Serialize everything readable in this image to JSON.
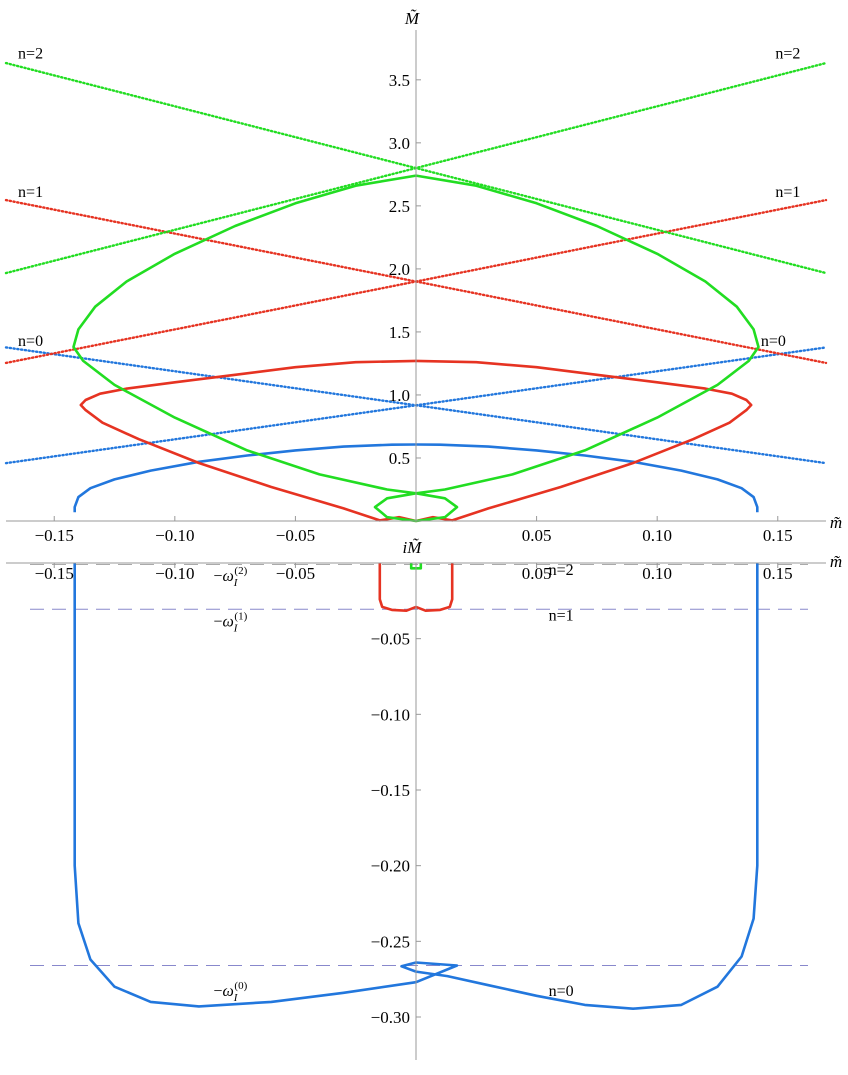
{
  "chart_data": [
    {
      "type": "line",
      "panel": "top",
      "xlabel": "m̃",
      "ylabel": "M̃",
      "xlim": [
        -0.17,
        0.17
      ],
      "ylim": [
        0,
        3.8
      ],
      "xticks": [
        -0.15,
        -0.1,
        -0.05,
        0.05,
        0.1,
        0.15
      ],
      "xtick_labels": [
        "−0.15",
        "−0.10",
        "−0.05",
        "0.05",
        "0.10",
        "0.15"
      ],
      "yticks": [
        0.5,
        1.0,
        1.5,
        2.0,
        2.5,
        3.0,
        3.5
      ],
      "ytick_labels": [
        "0.5",
        "1.0",
        "1.5",
        "2.0",
        "2.5",
        "3.0",
        "3.5"
      ],
      "series_labels": [
        {
          "text": "n=2",
          "x": -0.165,
          "y": 3.67,
          "color": "#22dd22"
        },
        {
          "text": "n=2",
          "x": 0.149,
          "y": 3.67,
          "color": "#22dd22"
        },
        {
          "text": "n=1",
          "x": -0.165,
          "y": 2.57,
          "color": "#e63322"
        },
        {
          "text": "n=1",
          "x": 0.149,
          "y": 2.57,
          "color": "#e63322"
        },
        {
          "text": "n=0",
          "x": -0.165,
          "y": 1.39,
          "color": "#2277dd"
        },
        {
          "text": "n=0",
          "x": 0.143,
          "y": 1.39,
          "color": "#2277dd"
        }
      ],
      "dotted_lines": [
        {
          "n": 0,
          "color": "#2277dd",
          "intercept": 0.918,
          "slope": 2.7
        },
        {
          "n": 1,
          "color": "#e63322",
          "intercept": 1.9,
          "slope": 3.8
        },
        {
          "n": 2,
          "color": "#22dd22",
          "intercept": 2.8,
          "slope": 4.9
        }
      ],
      "solid_curves": [
        {
          "n": 0,
          "color": "#2277dd",
          "points": [
            [
              0.1415,
              0.07
            ],
            [
              0.1415,
              0.11
            ],
            [
              0.14,
              0.19
            ],
            [
              0.135,
              0.26
            ],
            [
              0.125,
              0.33
            ],
            [
              0.11,
              0.4
            ],
            [
              0.09,
              0.47
            ],
            [
              0.07,
              0.52
            ],
            [
              0.05,
              0.56
            ],
            [
              0.03,
              0.59
            ],
            [
              0.01,
              0.605
            ],
            [
              0.0,
              0.607
            ]
          ]
        },
        {
          "n": 1,
          "color": "#e63322",
          "points": [
            [
              0.0,
              0.0
            ],
            [
              0.007,
              0.03
            ],
            [
              0.015,
              0.005
            ],
            [
              0.03,
              0.1
            ],
            [
              0.06,
              0.27
            ],
            [
              0.09,
              0.46
            ],
            [
              0.115,
              0.65
            ],
            [
              0.13,
              0.78
            ],
            [
              0.137,
              0.88
            ],
            [
              0.139,
              0.92
            ],
            [
              0.137,
              0.96
            ],
            [
              0.131,
              1.01
            ],
            [
              0.12,
              1.05
            ],
            [
              0.1,
              1.1
            ],
            [
              0.075,
              1.16
            ],
            [
              0.05,
              1.22
            ],
            [
              0.025,
              1.26
            ],
            [
              0.0,
              1.27
            ]
          ]
        },
        {
          "n": 2,
          "color": "#22dd22",
          "points": [
            [
              0.0,
              0.0
            ],
            [
              0.012,
              0.03
            ],
            [
              0.017,
              0.11
            ],
            [
              0.012,
              0.18
            ],
            [
              0.0,
              0.22
            ],
            [
              0.012,
              0.25
            ],
            [
              0.04,
              0.37
            ],
            [
              0.07,
              0.56
            ],
            [
              0.1,
              0.82
            ],
            [
              0.125,
              1.08
            ],
            [
              0.138,
              1.27
            ],
            [
              0.142,
              1.38
            ],
            [
              0.14,
              1.52
            ],
            [
              0.133,
              1.7
            ],
            [
              0.12,
              1.9
            ],
            [
              0.1,
              2.12
            ],
            [
              0.075,
              2.34
            ],
            [
              0.05,
              2.52
            ],
            [
              0.025,
              2.66
            ],
            [
              0.0,
              2.74
            ]
          ]
        }
      ]
    },
    {
      "type": "line",
      "panel": "bottom",
      "xlabel": "m̃",
      "ylabel": "iM̃",
      "xlim": [
        -0.17,
        0.17
      ],
      "ylim": [
        -0.33,
        0.005
      ],
      "xticks": [
        -0.15,
        -0.1,
        -0.05,
        0.05,
        0.1,
        0.15
      ],
      "xtick_labels": [
        "−0.15",
        "−0.10",
        "−0.05",
        "0.05",
        "0.10",
        "0.15"
      ],
      "yticks": [
        -0.05,
        -0.1,
        -0.15,
        -0.2,
        -0.25,
        -0.3
      ],
      "ytick_labels": [
        "−0.05",
        "−0.10",
        "−0.15",
        "−0.20",
        "−0.25",
        "−0.30"
      ],
      "dashed_levels": [
        {
          "label": "−ω",
          "n": 2,
          "value": -0.001,
          "color": "#aaaaaa"
        },
        {
          "label": "−ω",
          "n": 1,
          "value": -0.0306,
          "color": "#8888cc"
        },
        {
          "label": "−ω",
          "n": 0,
          "value": -0.266,
          "color": "#8888cc"
        }
      ],
      "level_labels": [
        {
          "prefix": "−ω",
          "sub": "I",
          "sup": "(2)",
          "x": -0.084,
          "y": -0.012
        },
        {
          "prefix": "−ω",
          "sub": "I",
          "sup": "(1)",
          "x": -0.084,
          "y": -0.042
        },
        {
          "prefix": "−ω",
          "sub": "I",
          "sup": "(0)",
          "x": -0.084,
          "y": -0.286
        }
      ],
      "series_labels": [
        {
          "text": "n=2",
          "x": 0.055,
          "y": -0.008
        },
        {
          "text": "n=1",
          "x": 0.055,
          "y": -0.038
        },
        {
          "text": "n=0",
          "x": 0.055,
          "y": -0.286
        }
      ],
      "solid_curves": [
        {
          "n": 0,
          "color": "#2277dd",
          "points": [
            [
              0.1415,
              0.0
            ],
            [
              0.1415,
              -0.08
            ],
            [
              0.1415,
              -0.14
            ],
            [
              0.1415,
              -0.2
            ],
            [
              0.14,
              -0.235
            ],
            [
              0.135,
              -0.26
            ],
            [
              0.125,
              -0.28
            ],
            [
              0.11,
              -0.292
            ],
            [
              0.09,
              -0.2945
            ],
            [
              0.07,
              -0.292
            ],
            [
              0.05,
              -0.286
            ],
            [
              0.03,
              -0.279
            ],
            [
              0.013,
              -0.273
            ],
            [
              0.0,
              -0.27
            ],
            [
              -0.006,
              -0.2665
            ],
            [
              0.0,
              -0.264
            ],
            [
              0.017,
              -0.266
            ],
            [
              0.0,
              -0.277
            ],
            [
              -0.03,
              -0.284
            ],
            [
              -0.06,
              -0.29
            ],
            [
              -0.09,
              -0.293
            ],
            [
              -0.11,
              -0.29
            ],
            [
              -0.125,
              -0.28
            ],
            [
              -0.135,
              -0.262
            ],
            [
              -0.14,
              -0.238
            ],
            [
              -0.1415,
              -0.2
            ],
            [
              -0.1415,
              0.0
            ]
          ]
        },
        {
          "n": 1,
          "color": "#e63322",
          "points": [
            [
              -0.015,
              0.0
            ],
            [
              -0.015,
              -0.024
            ],
            [
              -0.014,
              -0.029
            ],
            [
              -0.01,
              -0.031
            ],
            [
              -0.004,
              -0.0315
            ],
            [
              0.0,
              -0.029
            ],
            [
              0.004,
              -0.0315
            ],
            [
              0.01,
              -0.031
            ],
            [
              0.014,
              -0.029
            ],
            [
              0.015,
              -0.024
            ],
            [
              0.015,
              0.0
            ]
          ]
        },
        {
          "n": 2,
          "color": "#22dd22",
          "points": [
            [
              -0.002,
              0.0
            ],
            [
              -0.002,
              -0.0035
            ],
            [
              0.002,
              -0.0035
            ],
            [
              0.002,
              0.0
            ]
          ]
        }
      ]
    }
  ]
}
